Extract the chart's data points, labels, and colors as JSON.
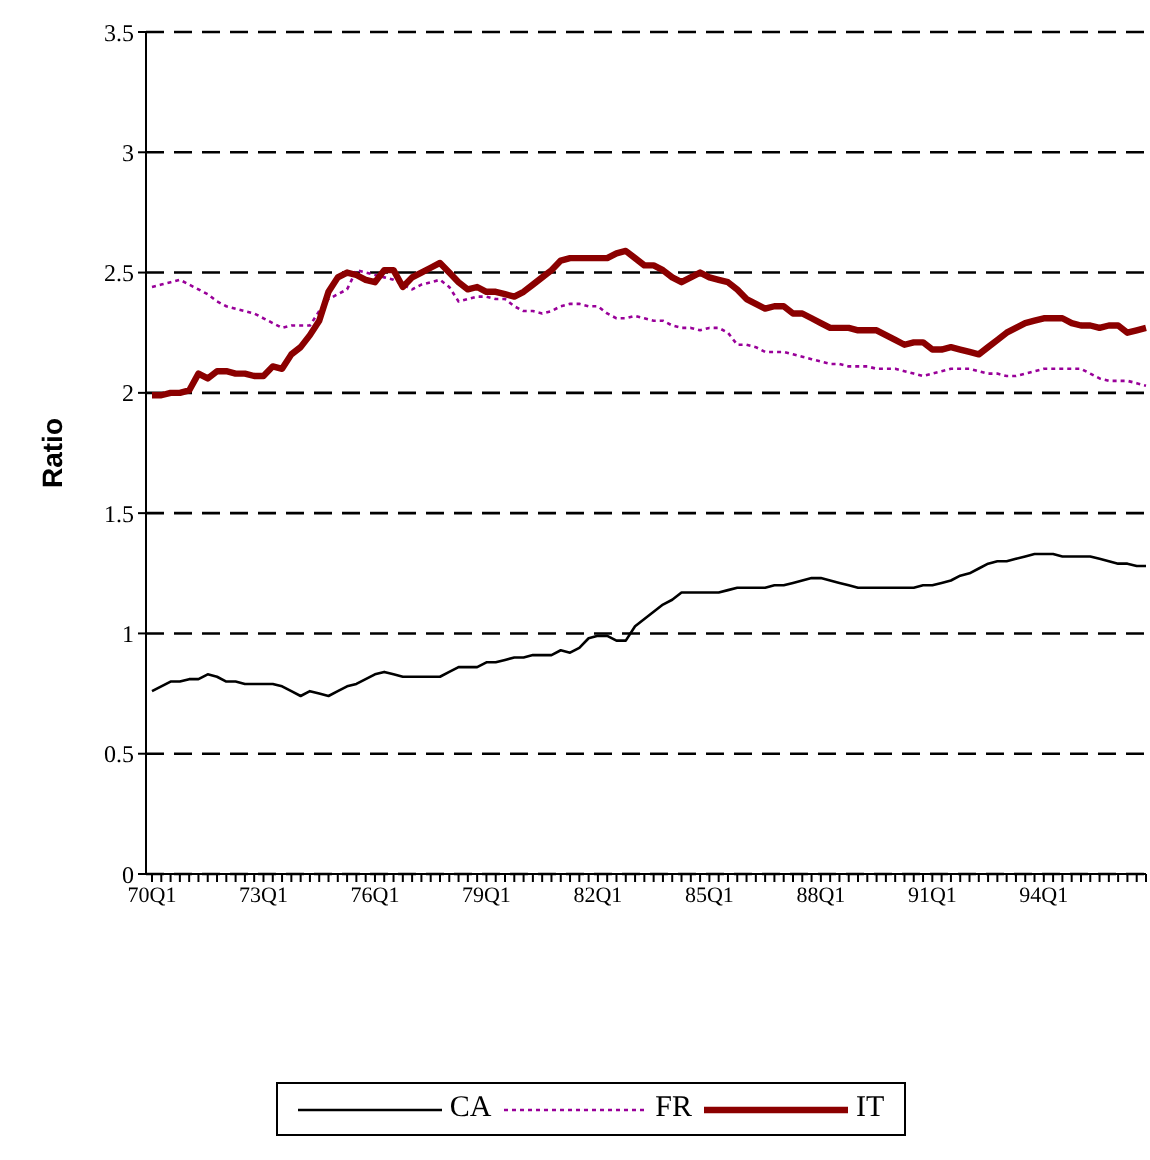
{
  "chart_data": {
    "type": "line",
    "ylabel": "Ratio",
    "categories": [
      "70Q1",
      null,
      null,
      null,
      null,
      null,
      null,
      null,
      null,
      null,
      null,
      null,
      "73Q1",
      null,
      null,
      null,
      null,
      null,
      null,
      null,
      null,
      null,
      null,
      null,
      "76Q1",
      null,
      null,
      null,
      null,
      null,
      null,
      null,
      null,
      null,
      null,
      null,
      "79Q1",
      null,
      null,
      null,
      null,
      null,
      null,
      null,
      null,
      null,
      null,
      null,
      "82Q1",
      null,
      null,
      null,
      null,
      null,
      null,
      null,
      null,
      null,
      null,
      null,
      "85Q1",
      null,
      null,
      null,
      null,
      null,
      null,
      null,
      null,
      null,
      null,
      null,
      "88Q1",
      null,
      null,
      null,
      null,
      null,
      null,
      null,
      null,
      null,
      null,
      null,
      "91Q1",
      null,
      null,
      null,
      null,
      null,
      null,
      null,
      null,
      null,
      null,
      null,
      "94Q1",
      null,
      null,
      null,
      null,
      null,
      null,
      null,
      null,
      null,
      null,
      null
    ],
    "series": [
      {
        "name": "CA",
        "color": "#000000",
        "line_style": "solid",
        "values": [
          0.76,
          0.78,
          0.8,
          0.8,
          0.81,
          0.81,
          0.83,
          0.82,
          0.8,
          0.8,
          0.79,
          0.79,
          0.79,
          0.79,
          0.78,
          0.76,
          0.74,
          0.76,
          0.75,
          0.74,
          0.76,
          0.78,
          0.79,
          0.81,
          0.83,
          0.84,
          0.83,
          0.82,
          0.82,
          0.82,
          0.82,
          0.82,
          0.84,
          0.86,
          0.86,
          0.86,
          0.88,
          0.88,
          0.89,
          0.9,
          0.9,
          0.91,
          0.91,
          0.91,
          0.93,
          0.92,
          0.94,
          0.98,
          0.99,
          0.99,
          0.97,
          0.97,
          1.03,
          1.06,
          1.09,
          1.12,
          1.14,
          1.17,
          1.17,
          1.17,
          1.17,
          1.17,
          1.18,
          1.19,
          1.19,
          1.19,
          1.19,
          1.2,
          1.2,
          1.21,
          1.22,
          1.23,
          1.23,
          1.22,
          1.21,
          1.2,
          1.19,
          1.19,
          1.19,
          1.19,
          1.19,
          1.19,
          1.19,
          1.2,
          1.2,
          1.21,
          1.22,
          1.24,
          1.25,
          1.27,
          1.29,
          1.3,
          1.3,
          1.31,
          1.32,
          1.33,
          1.33,
          1.33,
          1.32,
          1.32,
          1.32,
          1.32,
          1.31,
          1.3,
          1.29,
          1.29,
          1.28,
          1.28
        ]
      },
      {
        "name": "FR",
        "color": "#990099",
        "line_style": "dotted",
        "values": [
          2.44,
          2.45,
          2.46,
          2.47,
          2.45,
          2.43,
          2.41,
          2.38,
          2.36,
          2.35,
          2.34,
          2.33,
          2.31,
          2.29,
          2.27,
          2.28,
          2.28,
          2.28,
          2.34,
          2.39,
          2.41,
          2.43,
          2.51,
          2.5,
          2.49,
          2.48,
          2.47,
          2.45,
          2.43,
          2.45,
          2.46,
          2.47,
          2.44,
          2.38,
          2.39,
          2.4,
          2.4,
          2.39,
          2.39,
          2.36,
          2.34,
          2.34,
          2.33,
          2.34,
          2.36,
          2.37,
          2.37,
          2.36,
          2.36,
          2.33,
          2.31,
          2.31,
          2.32,
          2.31,
          2.3,
          2.3,
          2.28,
          2.27,
          2.27,
          2.26,
          2.27,
          2.27,
          2.25,
          2.2,
          2.2,
          2.19,
          2.17,
          2.17,
          2.17,
          2.16,
          2.15,
          2.14,
          2.13,
          2.12,
          2.12,
          2.11,
          2.11,
          2.11,
          2.1,
          2.1,
          2.1,
          2.09,
          2.08,
          2.07,
          2.08,
          2.09,
          2.1,
          2.1,
          2.1,
          2.09,
          2.08,
          2.08,
          2.07,
          2.07,
          2.08,
          2.09,
          2.1,
          2.1,
          2.1,
          2.1,
          2.1,
          2.08,
          2.06,
          2.05,
          2.05,
          2.05,
          2.04,
          2.03
        ]
      },
      {
        "name": "IT",
        "color": "#8b0000",
        "line_style": "solid",
        "values": [
          1.99,
          1.99,
          2.0,
          2.0,
          2.01,
          2.08,
          2.06,
          2.09,
          2.09,
          2.08,
          2.08,
          2.07,
          2.07,
          2.11,
          2.1,
          2.16,
          2.19,
          2.24,
          2.3,
          2.42,
          2.48,
          2.5,
          2.49,
          2.47,
          2.46,
          2.51,
          2.51,
          2.44,
          2.48,
          2.5,
          2.52,
          2.54,
          2.5,
          2.46,
          2.43,
          2.44,
          2.42,
          2.42,
          2.41,
          2.4,
          2.42,
          2.45,
          2.48,
          2.51,
          2.55,
          2.56,
          2.56,
          2.56,
          2.56,
          2.56,
          2.58,
          2.59,
          2.56,
          2.53,
          2.53,
          2.51,
          2.48,
          2.46,
          2.48,
          2.5,
          2.48,
          2.47,
          2.46,
          2.43,
          2.39,
          2.37,
          2.35,
          2.36,
          2.36,
          2.33,
          2.33,
          2.31,
          2.29,
          2.27,
          2.27,
          2.27,
          2.26,
          2.26,
          2.26,
          2.24,
          2.22,
          2.2,
          2.21,
          2.21,
          2.18,
          2.18,
          2.19,
          2.18,
          2.17,
          2.16,
          2.19,
          2.22,
          2.25,
          2.27,
          2.29,
          2.3,
          2.31,
          2.31,
          2.31,
          2.29,
          2.28,
          2.28,
          2.27,
          2.28,
          2.28,
          2.25,
          2.26,
          2.27
        ]
      }
    ],
    "ylim": [
      0,
      3.5
    ],
    "yticks": [
      0,
      0.5,
      1,
      1.5,
      2,
      2.5,
      3,
      3.5
    ],
    "grid": "y",
    "legend": "bottom",
    "marker": "none"
  }
}
